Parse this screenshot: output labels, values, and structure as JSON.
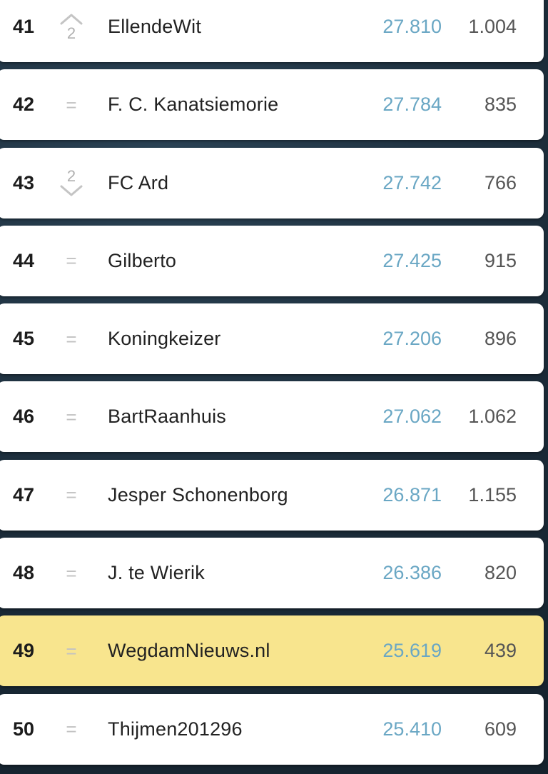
{
  "ranking": {
    "rows": [
      {
        "rank": "41",
        "change": "up",
        "change_value": "2",
        "name": "EllendeWit",
        "points": "27.810",
        "games": "1.004",
        "highlight": false
      },
      {
        "rank": "42",
        "change": "same",
        "change_value": "=",
        "name": "F. C. Kanatsiemorie",
        "points": "27.784",
        "games": "835",
        "highlight": false
      },
      {
        "rank": "43",
        "change": "down",
        "change_value": "2",
        "name": "FC Ard",
        "points": "27.742",
        "games": "766",
        "highlight": false
      },
      {
        "rank": "44",
        "change": "same",
        "change_value": "=",
        "name": "Gilberto",
        "points": "27.425",
        "games": "915",
        "highlight": false
      },
      {
        "rank": "45",
        "change": "same",
        "change_value": "=",
        "name": "Koningkeizer",
        "points": "27.206",
        "games": "896",
        "highlight": false
      },
      {
        "rank": "46",
        "change": "same",
        "change_value": "=",
        "name": "BartRaanhuis",
        "points": "27.062",
        "games": "1.062",
        "highlight": false
      },
      {
        "rank": "47",
        "change": "same",
        "change_value": "=",
        "name": "Jesper Schonenborg",
        "points": "26.871",
        "games": "1.155",
        "highlight": false
      },
      {
        "rank": "48",
        "change": "same",
        "change_value": "=",
        "name": "J. te Wierik",
        "points": "26.386",
        "games": "820",
        "highlight": false
      },
      {
        "rank": "49",
        "change": "same",
        "change_value": "=",
        "name": "WegdamNieuws.nl",
        "points": "25.619",
        "games": "439",
        "highlight": true
      },
      {
        "rank": "50",
        "change": "same",
        "change_value": "=",
        "name": "Thijmen201296",
        "points": "25.410",
        "games": "609",
        "highlight": false
      }
    ]
  },
  "colors": {
    "points": "#6aa7c4",
    "highlight": "#f8e58e",
    "background": "#1f3140"
  },
  "icons": {
    "up": "chevron-up-icon",
    "down": "chevron-down-icon"
  }
}
